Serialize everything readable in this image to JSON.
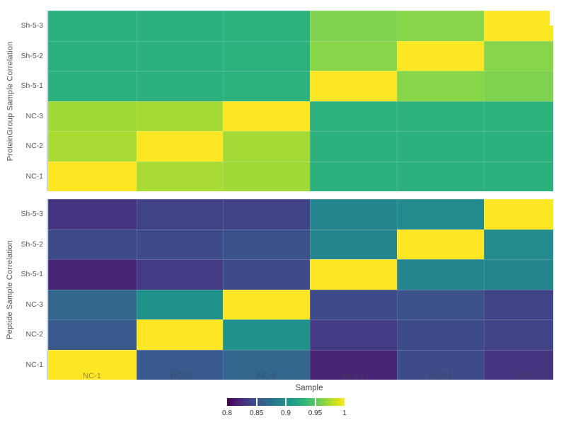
{
  "figure": {
    "background": "#ffffff",
    "xaxis_title": "Sample"
  },
  "chart_data": [
    {
      "type": "heatmap",
      "name": "proteingroup-sample-correlation",
      "ylabel": "ProteinGroup Sample Correlation",
      "x_categories": [
        "NC-1",
        "NC-2",
        "NC-3",
        "Sh-5-1",
        "Sh-5-2",
        "Sh-5-3"
      ],
      "y_categories_top_to_bottom": [
        "Sh-5-3",
        "Sh-5-2",
        "Sh-5-1",
        "NC-3",
        "NC-2",
        "NC-1"
      ],
      "zmin": 0.8,
      "zmax": 1.0,
      "show_x_tick_labels": false,
      "values_rows_top_to_bottom": [
        [
          0.927,
          0.927,
          0.928,
          0.961,
          0.964,
          1.0
        ],
        [
          0.927,
          0.927,
          0.928,
          0.964,
          1.0,
          0.964
        ],
        [
          0.927,
          0.927,
          0.928,
          1.0,
          0.964,
          0.961
        ],
        [
          0.972,
          0.973,
          1.0,
          0.928,
          0.928,
          0.928
        ],
        [
          0.974,
          1.0,
          0.973,
          0.927,
          0.927,
          0.927
        ],
        [
          1.0,
          0.974,
          0.972,
          0.927,
          0.927,
          0.927
        ]
      ]
    },
    {
      "type": "heatmap",
      "name": "peptide-sample-correlation",
      "ylabel": "Peptide Sample Correlation",
      "x_categories": [
        "NC-1",
        "NC-2",
        "NC-3",
        "Sh-5-1",
        "Sh-5-2",
        "Sh-5-3"
      ],
      "y_categories_top_to_bottom": [
        "Sh-5-3",
        "Sh-5-2",
        "Sh-5-1",
        "NC-3",
        "NC-2",
        "NC-1"
      ],
      "zmin": 0.8,
      "zmax": 1.0,
      "show_x_tick_labels": true,
      "values_rows_top_to_bottom": [
        [
          0.83,
          0.84,
          0.84,
          0.89,
          0.895,
          1.0
        ],
        [
          0.845,
          0.845,
          0.85,
          0.89,
          1.0,
          0.895
        ],
        [
          0.82,
          0.835,
          0.845,
          1.0,
          0.89,
          0.89
        ],
        [
          0.865,
          0.9,
          1.0,
          0.845,
          0.85,
          0.84
        ],
        [
          0.855,
          1.0,
          0.9,
          0.835,
          0.845,
          0.84
        ],
        [
          1.0,
          0.855,
          0.865,
          0.82,
          0.845,
          0.83
        ]
      ]
    }
  ],
  "colorbar": {
    "title": "Sample",
    "tick_labels": [
      "0.8",
      "0.85",
      "0.9",
      "0.95",
      "1"
    ],
    "domain": [
      0.8,
      1.0
    ]
  },
  "colorscale": {
    "name": "viridis",
    "stops": [
      [
        0,
        "#440154"
      ],
      [
        0.0627,
        "#48186a"
      ],
      [
        0.1255,
        "#472d7b"
      ],
      [
        0.1882,
        "#424086"
      ],
      [
        0.251,
        "#3b528b"
      ],
      [
        0.3137,
        "#33638d"
      ],
      [
        0.3765,
        "#2c728e"
      ],
      [
        0.4392,
        "#26828e"
      ],
      [
        0.502,
        "#21918c"
      ],
      [
        0.5647,
        "#1fa088"
      ],
      [
        0.6275,
        "#28ae80"
      ],
      [
        0.6902,
        "#3fbc73"
      ],
      [
        0.7529,
        "#5ec962"
      ],
      [
        0.8157,
        "#84d44b"
      ],
      [
        0.8784,
        "#addc30"
      ],
      [
        0.9412,
        "#d8e219"
      ],
      [
        1,
        "#fde725"
      ]
    ]
  }
}
